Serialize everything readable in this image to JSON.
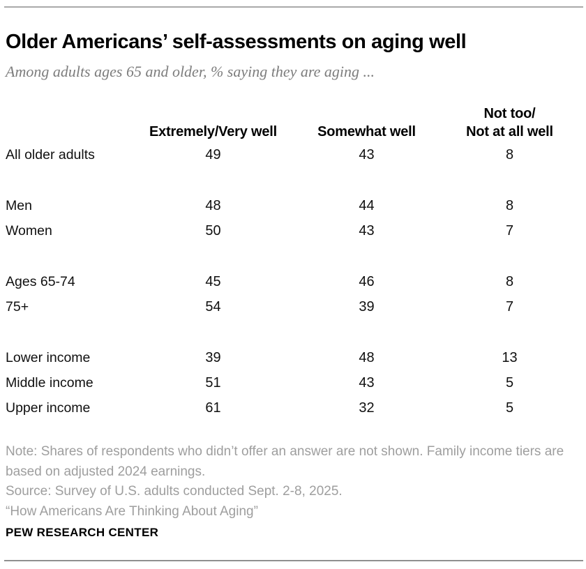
{
  "colors": {
    "title_text": "#000000",
    "subtitle_gray": "#7d7d7d",
    "body_text": "#101010",
    "note_gray": "#9e9e9e",
    "rule_gray": "#a9a9a9"
  },
  "chart_data": {
    "type": "table",
    "title": "Older Americans’ self-assessments on aging well",
    "subtitle": "Among adults ages 65 and older, % saying they are aging ...",
    "unit": "%",
    "columns": [
      {
        "label": "Extremely/Very well",
        "label_lines": [
          "Extremely/Very well"
        ]
      },
      {
        "label": "Somewhat well",
        "label_lines": [
          "Somewhat well"
        ]
      },
      {
        "label": "Not too/Not at all well",
        "label_lines": [
          "Not too/",
          "Not at all well"
        ]
      }
    ],
    "rows": [
      {
        "label": "All older adults",
        "values": [
          49,
          43,
          8
        ],
        "group": 0
      },
      {
        "label": "Men",
        "values": [
          48,
          44,
          8
        ],
        "group": 1
      },
      {
        "label": "Women",
        "values": [
          50,
          43,
          7
        ],
        "group": 1
      },
      {
        "label": "Ages 65-74",
        "values": [
          45,
          46,
          8
        ],
        "group": 2
      },
      {
        "label": "75+",
        "values": [
          54,
          39,
          7
        ],
        "group": 2
      },
      {
        "label": "Lower income",
        "values": [
          39,
          48,
          13
        ],
        "group": 3
      },
      {
        "label": "Middle income",
        "values": [
          51,
          43,
          5
        ],
        "group": 3
      },
      {
        "label": "Upper income",
        "values": [
          61,
          32,
          5
        ],
        "group": 3
      }
    ]
  },
  "footer": {
    "note": "Note: Shares of respondents who didn’t offer an answer are not shown. Family income tiers are based on adjusted 2024 earnings.",
    "source": "Source: Survey of U.S. adults conducted Sept. 2-8, 2025.",
    "quote": "“How Americans Are Thinking About Aging”",
    "brand": "PEW RESEARCH CENTER"
  }
}
